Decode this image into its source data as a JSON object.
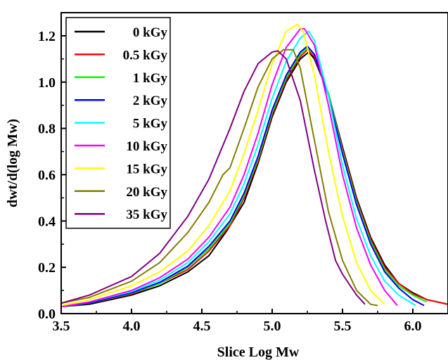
{
  "chart_data": {
    "type": "line",
    "title": "",
    "xlabel": "Slice Log Mw",
    "ylabel": "dwt/d(log Mw)",
    "xlim": [
      3.5,
      6.25
    ],
    "ylim": [
      0.0,
      1.3
    ],
    "xticks": [
      3.5,
      4.0,
      4.5,
      5.0,
      5.5,
      6.0
    ],
    "xtick_labels": [
      "3.5",
      "4.0",
      "4.5",
      "5.0",
      "5.5",
      "6.0"
    ],
    "yticks": [
      0.0,
      0.2,
      0.4,
      0.6,
      0.8,
      1.0,
      1.2
    ],
    "ytick_labels": [
      "0.0",
      "0.2",
      "0.4",
      "0.6",
      "0.8",
      "1.0",
      "1.2"
    ],
    "grid": false,
    "legend_position": "top-left",
    "series": [
      {
        "name": "0 kGy",
        "color": "#000000",
        "x": [
          3.5,
          3.7,
          4.0,
          4.2,
          4.4,
          4.55,
          4.68,
          4.72,
          4.8,
          4.9,
          5.0,
          5.1,
          5.2,
          5.26,
          5.3,
          5.4,
          5.5,
          5.6,
          5.7,
          5.8,
          5.9,
          6.0,
          6.1,
          6.25
        ],
        "y": [
          0.03,
          0.04,
          0.08,
          0.12,
          0.18,
          0.25,
          0.36,
          0.4,
          0.48,
          0.65,
          0.85,
          1.0,
          1.1,
          1.13,
          1.1,
          0.95,
          0.72,
          0.5,
          0.33,
          0.21,
          0.13,
          0.09,
          0.06,
          0.04
        ]
      },
      {
        "name": "0.5 kGy",
        "color": "#ff0000",
        "x": [
          3.5,
          3.7,
          4.0,
          4.2,
          4.4,
          4.55,
          4.7,
          4.8,
          4.9,
          5.0,
          5.1,
          5.2,
          5.25,
          5.3,
          5.4,
          5.5,
          5.6,
          5.7,
          5.8,
          5.9,
          6.0,
          6.1,
          6.25
        ],
        "y": [
          0.03,
          0.045,
          0.085,
          0.13,
          0.19,
          0.27,
          0.38,
          0.5,
          0.66,
          0.86,
          1.01,
          1.11,
          1.14,
          1.11,
          0.95,
          0.71,
          0.49,
          0.32,
          0.2,
          0.13,
          0.085,
          0.06,
          0.04
        ]
      },
      {
        "name": "1 kGy",
        "color": "#00ff00",
        "x": [
          3.5,
          3.7,
          4.0,
          4.2,
          4.4,
          4.55,
          4.7,
          4.8,
          4.9,
          5.0,
          5.1,
          5.2,
          5.25,
          5.3,
          5.4,
          5.5,
          5.6,
          5.7,
          5.8,
          5.9,
          6.0,
          6.1
        ],
        "y": [
          0.03,
          0.045,
          0.088,
          0.13,
          0.2,
          0.28,
          0.39,
          0.51,
          0.67,
          0.87,
          1.02,
          1.12,
          1.15,
          1.12,
          0.95,
          0.7,
          0.48,
          0.31,
          0.19,
          0.12,
          0.08,
          0.05
        ]
      },
      {
        "name": "2 kGy",
        "color": "#0000ff",
        "x": [
          3.5,
          3.7,
          4.0,
          4.2,
          4.4,
          4.55,
          4.7,
          4.8,
          4.9,
          5.0,
          5.1,
          5.2,
          5.25,
          5.3,
          5.4,
          5.5,
          5.6,
          5.7,
          5.8,
          5.9,
          6.0,
          6.08
        ],
        "y": [
          0.03,
          0.046,
          0.09,
          0.135,
          0.205,
          0.29,
          0.4,
          0.52,
          0.68,
          0.88,
          1.03,
          1.13,
          1.155,
          1.12,
          0.94,
          0.69,
          0.47,
          0.3,
          0.18,
          0.11,
          0.06,
          0.035
        ]
      },
      {
        "name": "5 kGy",
        "color": "#00ffff",
        "x": [
          3.5,
          3.7,
          4.0,
          4.2,
          4.4,
          4.55,
          4.7,
          4.8,
          4.9,
          5.0,
          5.1,
          5.2,
          5.26,
          5.3,
          5.4,
          5.5,
          5.6,
          5.7,
          5.8,
          5.9,
          6.02
        ],
        "y": [
          0.03,
          0.05,
          0.095,
          0.145,
          0.22,
          0.31,
          0.43,
          0.56,
          0.73,
          0.93,
          1.09,
          1.19,
          1.22,
          1.18,
          0.94,
          0.64,
          0.41,
          0.25,
          0.14,
          0.08,
          0.035
        ]
      },
      {
        "name": "10 kGy",
        "color": "#ff00ff",
        "x": [
          3.5,
          3.7,
          4.0,
          4.2,
          4.4,
          4.55,
          4.7,
          4.8,
          4.9,
          5.0,
          5.1,
          5.2,
          5.23,
          5.3,
          5.4,
          5.5,
          5.6,
          5.7,
          5.8,
          5.89
        ],
        "y": [
          0.03,
          0.05,
          0.1,
          0.155,
          0.235,
          0.33,
          0.46,
          0.6,
          0.78,
          0.99,
          1.15,
          1.23,
          1.23,
          1.16,
          0.9,
          0.6,
          0.37,
          0.21,
          0.1,
          0.035
        ]
      },
      {
        "name": "15 kGy",
        "color": "#ffff00",
        "x": [
          3.5,
          3.7,
          4.0,
          4.2,
          4.4,
          4.55,
          4.7,
          4.8,
          4.9,
          5.0,
          5.1,
          5.18,
          5.22,
          5.3,
          5.4,
          5.5,
          5.6,
          5.7,
          5.8
        ],
        "y": [
          0.035,
          0.06,
          0.12,
          0.18,
          0.27,
          0.38,
          0.53,
          0.69,
          0.88,
          1.08,
          1.22,
          1.25,
          1.22,
          1.03,
          0.7,
          0.42,
          0.22,
          0.1,
          0.04
        ]
      },
      {
        "name": "20 kGy",
        "color": "#808000",
        "x": [
          3.5,
          3.7,
          4.0,
          4.2,
          4.4,
          4.55,
          4.65,
          4.7,
          4.8,
          4.9,
          5.0,
          5.08,
          5.15,
          5.2,
          5.3,
          5.4,
          5.5,
          5.6,
          5.7,
          5.75
        ],
        "y": [
          0.045,
          0.07,
          0.14,
          0.22,
          0.35,
          0.48,
          0.6,
          0.63,
          0.8,
          0.98,
          1.1,
          1.14,
          1.14,
          1.06,
          0.75,
          0.44,
          0.23,
          0.1,
          0.04,
          0.035
        ]
      },
      {
        "name": "35 kGy",
        "color": "#800080",
        "x": [
          3.5,
          3.7,
          4.0,
          4.2,
          4.4,
          4.55,
          4.7,
          4.8,
          4.9,
          5.0,
          5.04,
          5.1,
          5.2,
          5.3,
          5.38,
          5.45,
          5.5,
          5.6,
          5.66
        ],
        "y": [
          0.045,
          0.08,
          0.16,
          0.26,
          0.42,
          0.58,
          0.8,
          0.96,
          1.08,
          1.13,
          1.135,
          1.1,
          0.92,
          0.62,
          0.4,
          0.23,
          0.17,
          0.08,
          0.04
        ]
      }
    ]
  }
}
